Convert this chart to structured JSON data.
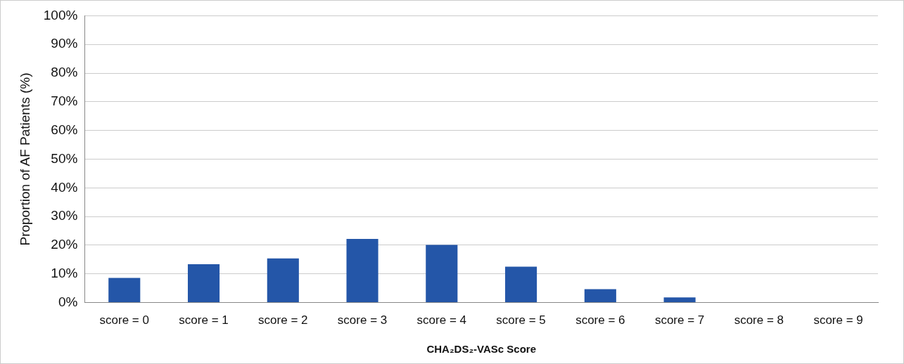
{
  "chart_data": {
    "type": "bar",
    "xlabel": "CHA₂DS₂-VASc Score",
    "ylabel": "Proportion of AF Patients (%)",
    "categories": [
      "score = 0",
      "score = 1",
      "score = 2",
      "score = 3",
      "score = 4",
      "score = 5",
      "score = 6",
      "score = 7",
      "score = 8",
      "score = 9"
    ],
    "values": [
      8.6,
      13.4,
      15.4,
      22.2,
      20.1,
      12.5,
      4.7,
      1.8,
      0,
      0
    ],
    "color": "#2456a8",
    "ylim": [
      0,
      100
    ],
    "yticks": [
      {
        "value": 0,
        "label": "0%"
      },
      {
        "value": 10,
        "label": "10%"
      },
      {
        "value": 20,
        "label": "20%"
      },
      {
        "value": 30,
        "label": "30%"
      },
      {
        "value": 40,
        "label": "40%"
      },
      {
        "value": 50,
        "label": "50%"
      },
      {
        "value": 60,
        "label": "60%"
      },
      {
        "value": 70,
        "label": "70%"
      },
      {
        "value": 80,
        "label": "80%"
      },
      {
        "value": 90,
        "label": "90%"
      },
      {
        "value": 100,
        "label": "100%"
      }
    ],
    "grid": "y",
    "legend": false
  }
}
